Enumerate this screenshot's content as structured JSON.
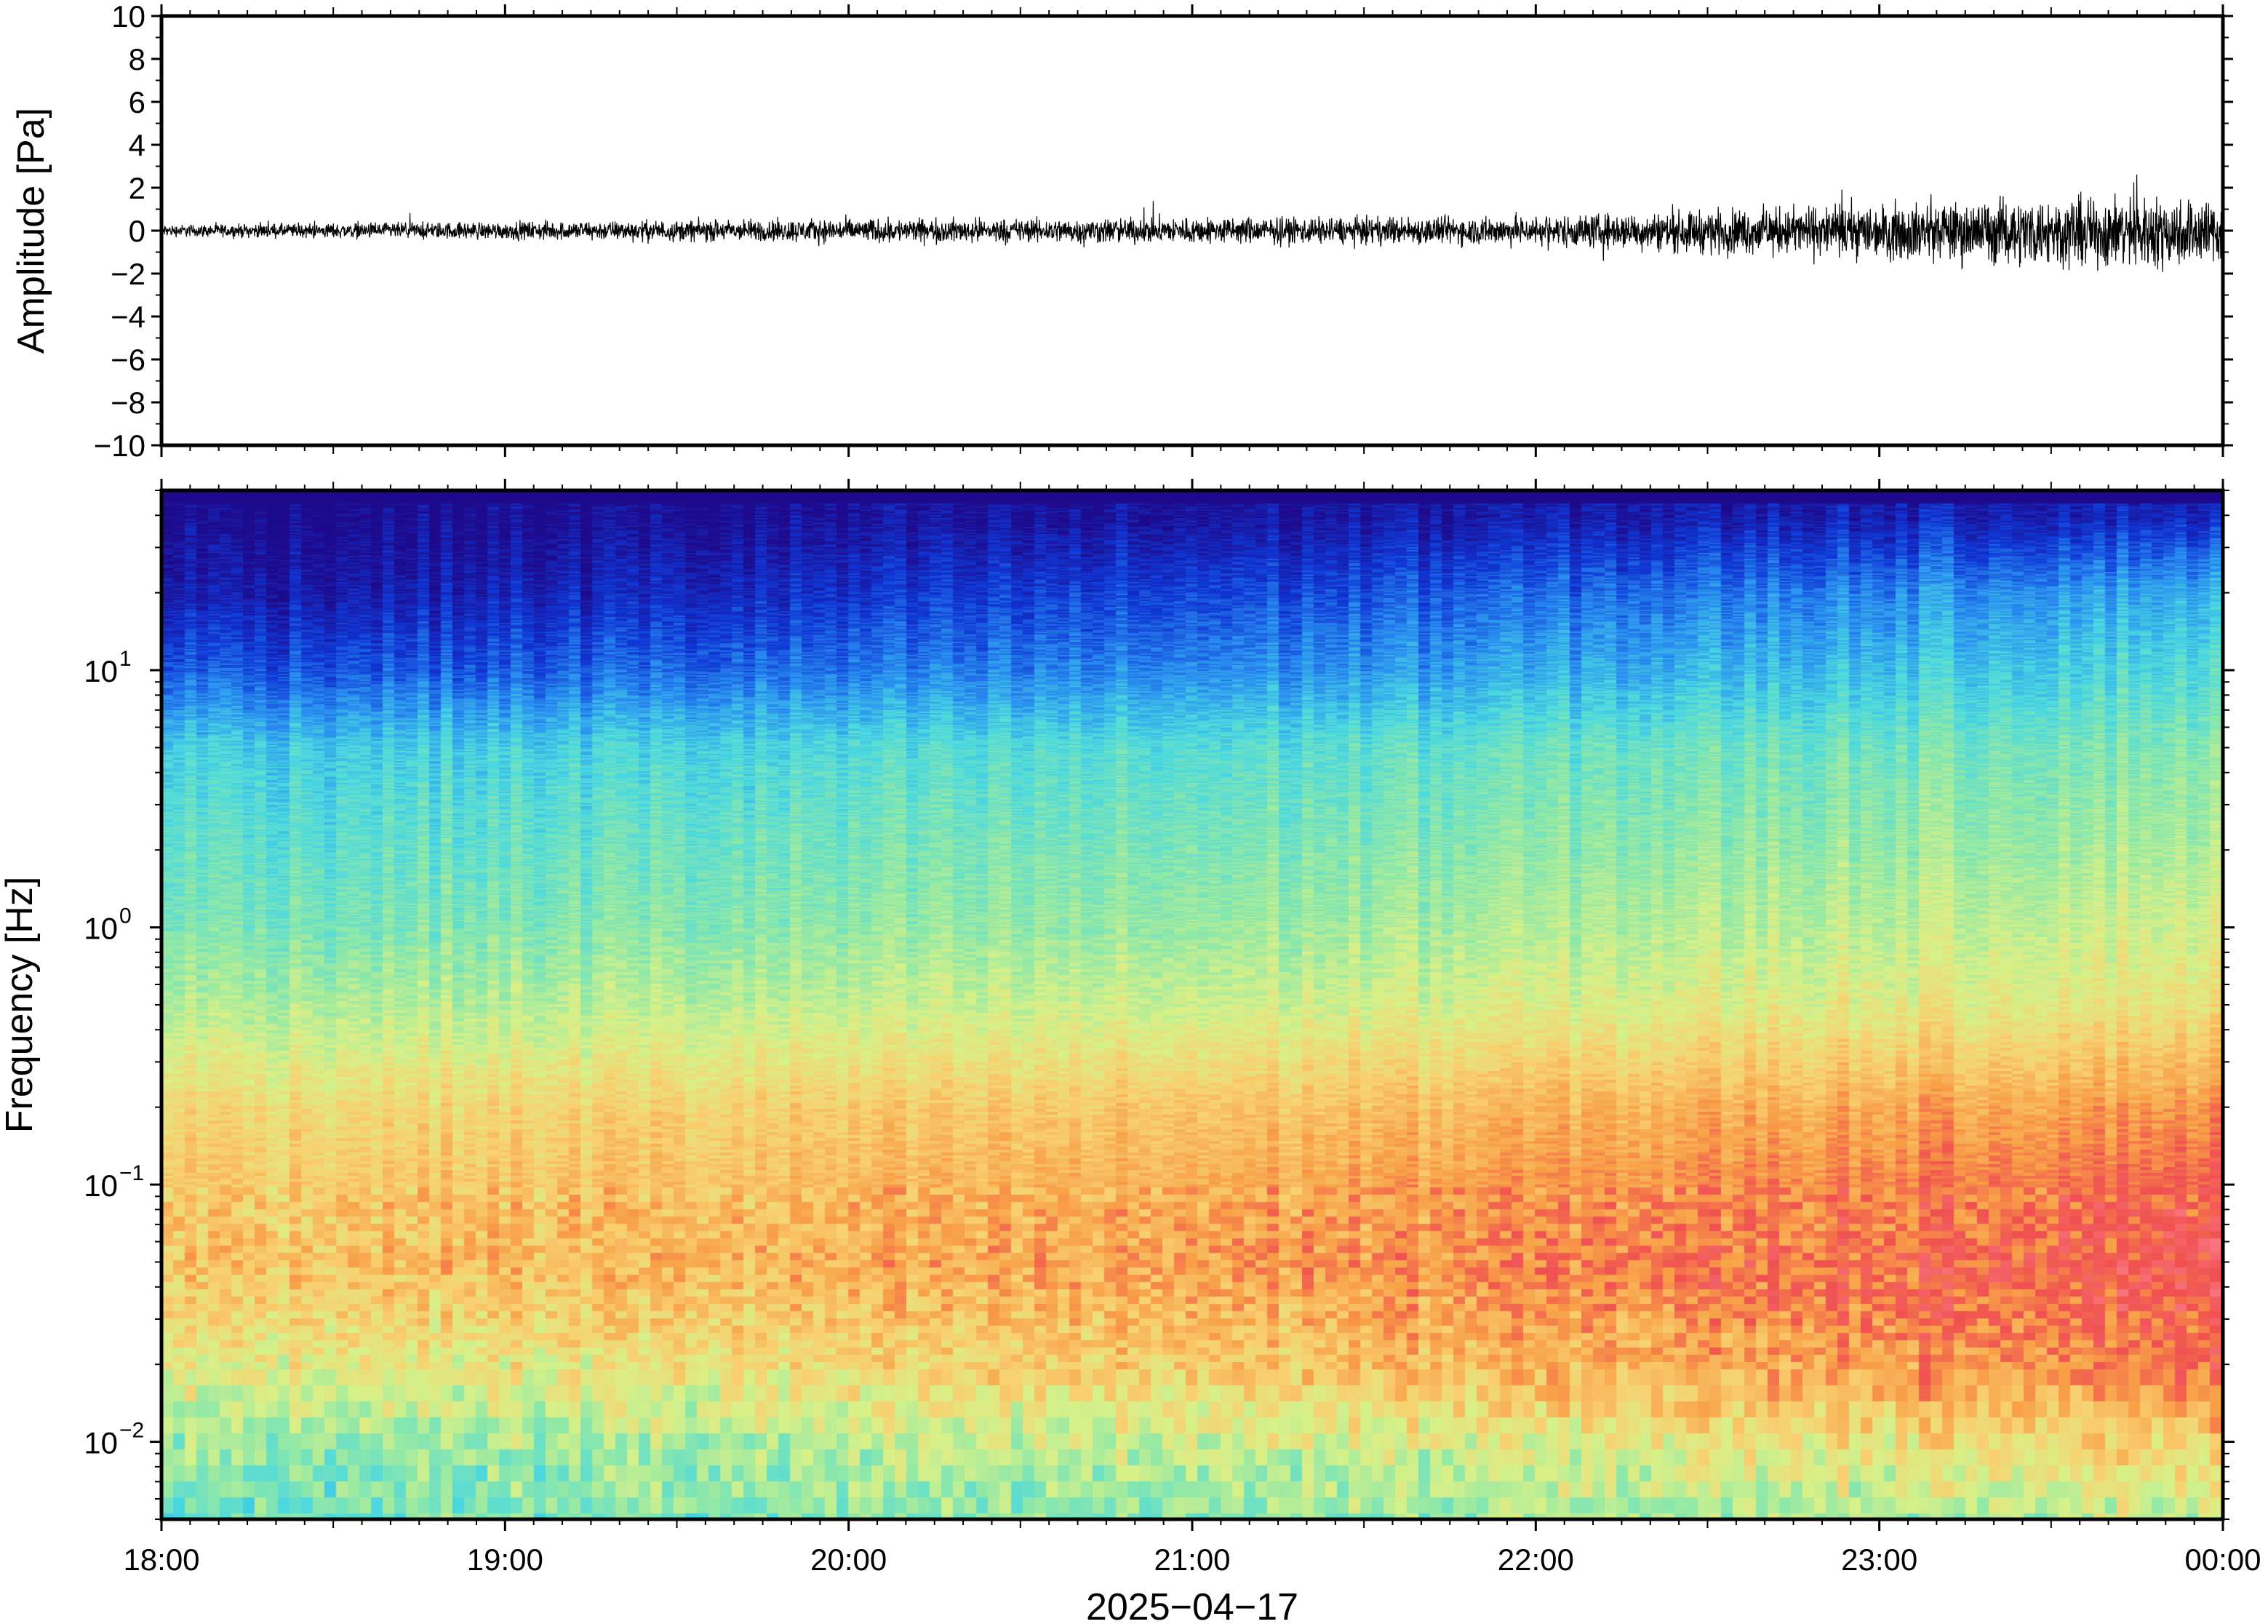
{
  "chart_data": [
    {
      "type": "line",
      "panel": "waveform",
      "ylabel": "Amplitude [Pa]",
      "ylim": [
        -10,
        10
      ],
      "yticks": [
        10,
        8,
        6,
        4,
        2,
        0,
        -2,
        -4,
        -6,
        -8,
        -10
      ],
      "ytick_labels": [
        "10",
        "8",
        "6",
        "4",
        "2",
        "0",
        "−2",
        "−4",
        "−6",
        "−8",
        "−10"
      ],
      "x_hours": [
        18,
        19,
        20,
        21,
        22,
        23,
        24
      ],
      "envelope": {
        "x": [
          18.0,
          18.5,
          19.0,
          19.5,
          20.0,
          20.5,
          21.0,
          21.5,
          22.0,
          22.3,
          22.5,
          22.8,
          23.0,
          23.3,
          23.5,
          23.8,
          24.0
        ],
        "upper": [
          0.4,
          0.5,
          0.6,
          0.7,
          0.8,
          0.8,
          0.9,
          0.9,
          1.0,
          1.2,
          1.4,
          1.6,
          1.8,
          2.0,
          2.2,
          2.2,
          2.1
        ],
        "lower": [
          -0.4,
          -0.5,
          -0.6,
          -0.7,
          -0.8,
          -0.8,
          -0.9,
          -0.9,
          -1.0,
          -1.3,
          -1.5,
          -1.7,
          -1.9,
          -2.2,
          -2.4,
          -2.6,
          -2.3
        ]
      },
      "line_color": "#000000"
    },
    {
      "type": "heatmap",
      "panel": "spectrogram",
      "ylabel": "Frequency [Hz]",
      "yscale": "log",
      "ylim": [
        0.005,
        50
      ],
      "yticks": [
        0.01,
        0.1,
        1,
        10
      ],
      "ytick_labels": [
        {
          "base": "10",
          "exp": "−2"
        },
        {
          "base": "10",
          "exp": "−1"
        },
        {
          "base": "10",
          "exp": "0"
        },
        {
          "base": "10",
          "exp": "1"
        }
      ],
      "xlabel": "2025−04−17",
      "xticks": [
        18,
        19,
        20,
        21,
        22,
        23,
        24
      ],
      "xtick_labels": [
        "18:00",
        "19:00",
        "20:00",
        "21:00",
        "22:00",
        "23:00",
        "00:00"
      ],
      "colormap": [
        "#1e0a8c",
        "#1038d6",
        "#2a90f0",
        "#4ad8e0",
        "#8fe8a8",
        "#d8f088",
        "#f8d070",
        "#f8a048",
        "#f05050",
        "#f87880"
      ],
      "level_profile": {
        "freq_hz": [
          0.005,
          0.01,
          0.02,
          0.05,
          0.1,
          0.2,
          0.5,
          1,
          2,
          5,
          10,
          20,
          40
        ],
        "level_18h": [
          0.4,
          0.45,
          0.58,
          0.7,
          0.68,
          0.64,
          0.5,
          0.42,
          0.38,
          0.32,
          0.15,
          0.05,
          0.0
        ],
        "level_24h": [
          0.52,
          0.66,
          0.85,
          0.92,
          0.88,
          0.8,
          0.62,
          0.56,
          0.5,
          0.44,
          0.36,
          0.28,
          0.08
        ]
      },
      "dark_band_top_hz": 45
    }
  ]
}
